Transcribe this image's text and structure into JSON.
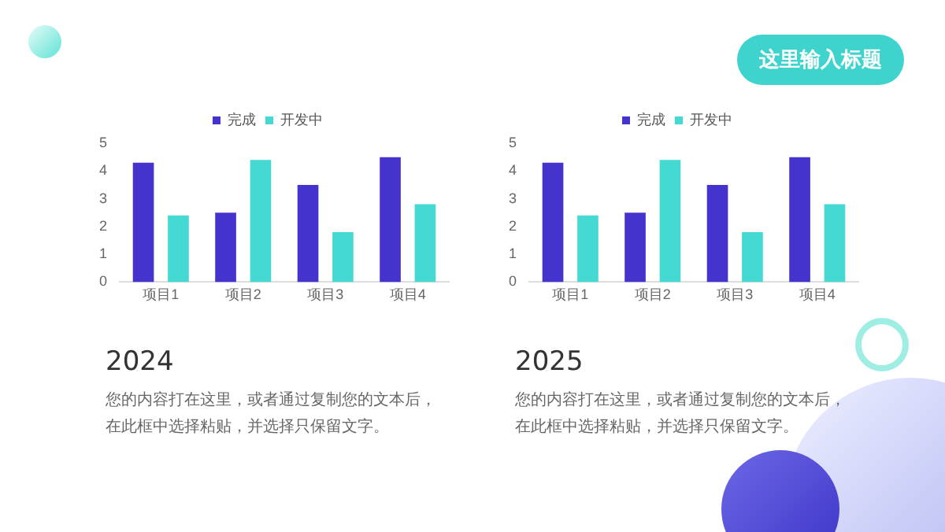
{
  "chart_data": [
    {
      "type": "other",
      "title": "这里输入标题"
    },
    {
      "type": "bar",
      "categories": [
        "项目1",
        "项目2",
        "项目3",
        "项目4"
      ],
      "series": [
        {
          "name": "完成",
          "color": "#4433cc",
          "values": [
            4.3,
            2.5,
            3.5,
            4.5
          ]
        },
        {
          "name": "开发中",
          "color": "#44d9d2",
          "values": [
            2.4,
            4.4,
            1.8,
            2.8
          ]
        }
      ],
      "ylim": [
        0,
        5
      ],
      "yticks": [
        0,
        1,
        2,
        3,
        4,
        5
      ],
      "grid": false,
      "legend": "top",
      "annotations": [
        "2024",
        "您的内容打在这里，或者通过复制您的文本后，在此框中选择粘贴，并选择只保留文字。"
      ]
    },
    {
      "type": "bar",
      "categories": [
        "项目1",
        "项目2",
        "项目3",
        "项目4"
      ],
      "series": [
        {
          "name": "完成",
          "color": "#4433cc",
          "values": [
            4.3,
            2.5,
            3.5,
            4.5
          ]
        },
        {
          "name": "开发中",
          "color": "#44d9d2",
          "values": [
            2.4,
            4.4,
            1.8,
            2.8
          ]
        }
      ],
      "ylim": [
        0,
        5
      ],
      "yticks": [
        0,
        1,
        2,
        3,
        4,
        5
      ],
      "grid": false,
      "legend": "top",
      "annotations": [
        "2025",
        "您的内容打在这里，或者通过复制您的文本后，在此框中选择粘贴，并选择只保留文字。"
      ]
    }
  ]
}
